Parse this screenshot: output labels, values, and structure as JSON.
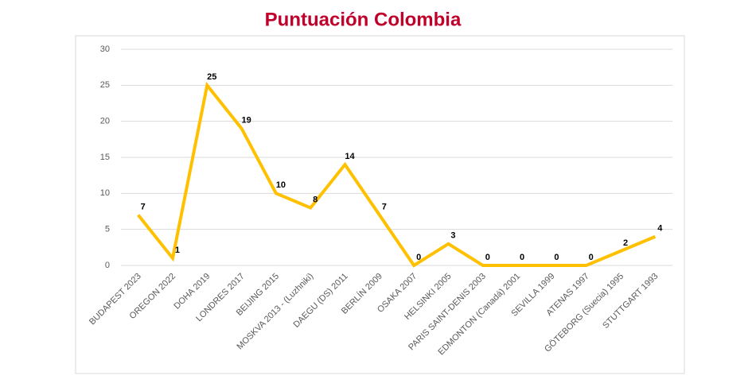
{
  "chart_data": {
    "type": "line",
    "title": "Puntuación Colombia",
    "categories": [
      "BUDAPEST 2023",
      "OREGON 2022",
      "DOHA 2019",
      "LONDRES 2017",
      "BEIJING 2015",
      "MOSKVA 2013 - (Luzhniki)",
      "DAEGU (DS) 2011",
      "BERLÍN 2009",
      "OSAKA 2007",
      "HELSINKI 2005",
      "PARIS SAINT-DENIS 2003",
      "EDMONTON (Canadá) 2001",
      "SEVILLA 1999",
      "ATENAS 1997",
      "GÖTEBORG (Suecia) 1995",
      "STUTTGART 1993"
    ],
    "values": [
      7,
      1,
      25,
      19,
      10,
      8,
      14,
      7,
      0,
      3,
      0,
      0,
      0,
      0,
      2,
      4
    ],
    "color": "#ffc000",
    "ylim": [
      0,
      30
    ],
    "yticks": [
      0,
      5,
      10,
      15,
      20,
      25,
      30
    ],
    "grid": true
  }
}
